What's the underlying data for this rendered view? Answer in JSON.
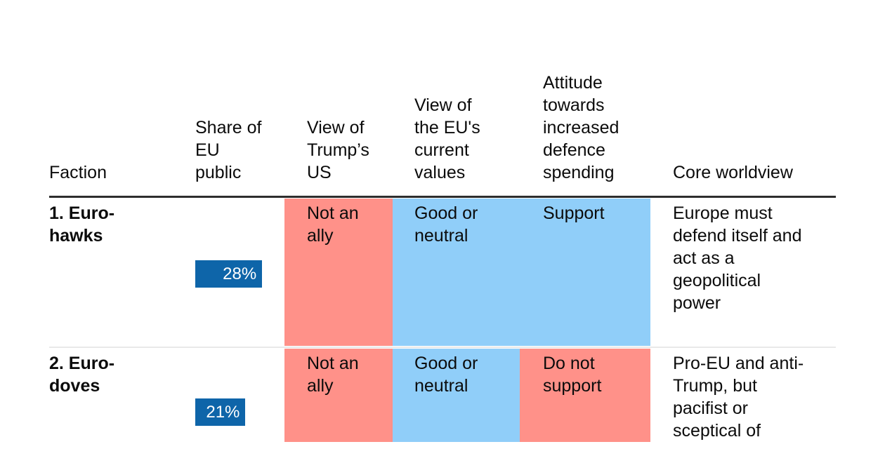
{
  "palette": {
    "bar_blue": "#0e65a9",
    "negative_red": "#ff9189",
    "positive_blue": "#90cef9",
    "rule_dark": "#2d2d2d",
    "divider": "#e9e9e9",
    "text": "#0b0b0b",
    "bar_label": "#ffffff"
  },
  "header": {
    "faction": "Faction",
    "share": "Share of\nEU\npublic",
    "trump": "View of\nTrump’s\nUS",
    "values": "View of\nthe EU's\ncurrent\nvalues",
    "defence": "Attitude\ntowards\nincreased\ndefence\nspending",
    "worldview": "Core worldview"
  },
  "rows": [
    {
      "faction": "1. Euro-\nhawks",
      "share_label": "28%",
      "share_value": 28,
      "trump": "Not an\nally",
      "trump_sentiment": "negative",
      "values": "Good or\nneutral",
      "values_sentiment": "positive",
      "defence": "Support",
      "defence_sentiment": "positive",
      "worldview": "Europe must\ndefend itself and\nact as a\ngeopolitical\npower"
    },
    {
      "faction": "2. Euro-\ndoves",
      "share_label": "21%",
      "share_value": 21,
      "trump": "Not an\nally",
      "trump_sentiment": "negative",
      "values": "Good or\nneutral",
      "values_sentiment": "positive",
      "defence": "Do not\nsupport",
      "defence_sentiment": "negative",
      "worldview": "Pro-EU and anti-\nTrump, but\npacifist or\nsceptical of"
    }
  ],
  "chart_data": {
    "type": "table",
    "columns": [
      "Faction",
      "Share of EU public",
      "View of Trump's US",
      "View of the EU's current values",
      "Attitude towards increased defence spending",
      "Core worldview"
    ],
    "rows": [
      [
        "1. Euro-hawks",
        28,
        "Not an ally",
        "Good or neutral",
        "Support",
        "Europe must defend itself and act as a geopolitical power"
      ],
      [
        "2. Euro-doves",
        21,
        "Not an ally",
        "Good or neutral",
        "Do not support",
        "Pro-EU and anti-Trump, but pacifist or sceptical of"
      ]
    ],
    "bar_column": "Share of EU public",
    "bar_values": [
      28,
      21
    ],
    "cell_sentiment": [
      {
        "View of Trump's US": "negative",
        "View of the EU's current values": "positive",
        "Attitude towards increased defence spending": "positive"
      },
      {
        "View of Trump's US": "negative",
        "View of the EU's current values": "positive",
        "Attitude towards increased defence spending": "negative"
      }
    ],
    "legend": "red = negative stance, light blue = positive/neutral stance",
    "title": ""
  }
}
